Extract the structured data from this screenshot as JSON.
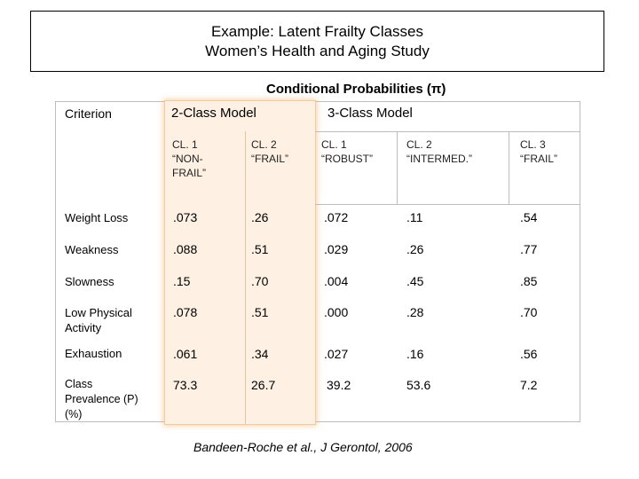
{
  "title": {
    "line1": "Example: Latent Frailty Classes",
    "line2": "Women’s Health and  Aging Study"
  },
  "conditional_probabilities_label": "Conditional Probabilities (π)",
  "table": {
    "criterion_header": "Criterion",
    "model_headers": [
      "2-Class Model",
      "3-Class Model"
    ],
    "class_headers": [
      "CL. 1\n“NON-\nFRAIL”",
      "CL. 2\n“FRAIL”",
      "CL. 1\n“ROBUST”",
      "CL. 2\n“INTERMED.”",
      "CL. 3\n“FRAIL”"
    ],
    "rows": [
      {
        "label": "Weight Loss",
        "values": [
          ".073",
          ".26",
          ".072",
          ".11",
          ".54"
        ]
      },
      {
        "label": "Weakness",
        "values": [
          ".088",
          ".51",
          ".029",
          ".26",
          ".77"
        ]
      },
      {
        "label": "Slowness",
        "values": [
          ".15",
          ".70",
          ".004",
          ".45",
          ".85"
        ]
      },
      {
        "label": "Low Physical\nActivity",
        "values": [
          ".078",
          ".51",
          ".000",
          ".28",
          ".70"
        ]
      },
      {
        "label": "Exhaustion",
        "values": [
          ".061",
          ".34",
          ".027",
          ".16",
          ".56"
        ]
      },
      {
        "label": "Class\nPrevalence (P)\n(%)",
        "values": [
          "73.3",
          "26.7",
          "39.2",
          "53.6",
          "7.2"
        ]
      }
    ]
  },
  "citation": "Bandeen-Roche et al., J Gerontol, 2006",
  "colors": {
    "two_class_highlight": "#fef1e3",
    "two_class_glow": "#eeaa5f",
    "grid": "#bdbdbd"
  }
}
